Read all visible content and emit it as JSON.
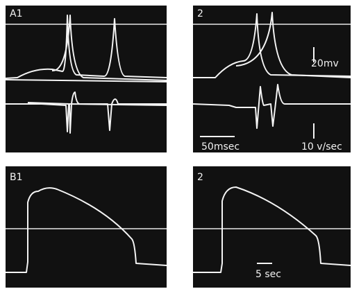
{
  "panels": [
    {
      "label": "A1"
    },
    {
      "label": "2",
      "annotations": [
        "20mv",
        "10 v/sec",
        "50msec"
      ]
    },
    {
      "label": "B1"
    },
    {
      "label": "2",
      "annotations": [
        "5 sec"
      ]
    }
  ]
}
